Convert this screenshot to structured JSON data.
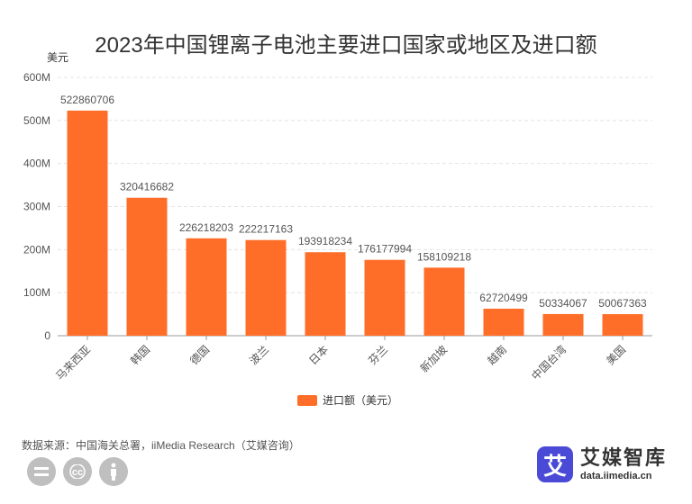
{
  "chart_data": {
    "type": "bar",
    "title": "2023年中国锂离子电池主要进口国家或地区及进口额",
    "ylabel": "美元",
    "ylim": [
      0,
      600000000
    ],
    "yticks": [
      "0",
      "100M",
      "200M",
      "300M",
      "400M",
      "500M",
      "600M"
    ],
    "grid": true,
    "legend_position": "bottom",
    "categories": [
      "马来西亚",
      "韩国",
      "德国",
      "波兰",
      "日本",
      "芬兰",
      "新加坡",
      "越南",
      "中国台湾",
      "美国"
    ],
    "series": [
      {
        "name": "进口额（美元）",
        "color": "#FF6E28",
        "values": [
          522860706,
          320416682,
          226218203,
          222217163,
          193918234,
          176177994,
          158109218,
          62720499,
          50334067,
          50067363
        ]
      }
    ]
  },
  "source": "数据来源：中国海关总署，iiMedia Research（艾媒咨询）",
  "logo": {
    "mark": "艾",
    "name": "艾媒智库",
    "url": "data.iimedia.cn"
  },
  "license_icons": [
    "equals-icon",
    "cc-icon",
    "person-icon"
  ]
}
